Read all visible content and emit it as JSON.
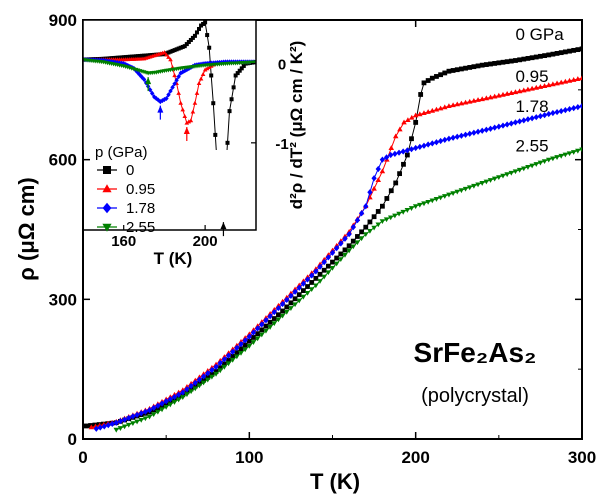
{
  "chart_data": {
    "type": "line",
    "main": {
      "xlabel": "T (K)",
      "ylabel": "ρ (μΩ cm)",
      "xlim": [
        0,
        300
      ],
      "ylim": [
        0,
        900
      ],
      "xticks": [
        "0",
        "100",
        "200",
        "300"
      ],
      "yticks": [
        "0",
        "300",
        "600",
        "900"
      ],
      "sample_title": "SrFe₂As₂",
      "sample_subtitle": "(polycrystal)",
      "series": [
        {
          "label": "0 GPa",
          "color": "#000000",
          "marker": "square",
          "x": [
            2,
            20,
            40,
            60,
            80,
            100,
            120,
            140,
            160,
            170,
            180,
            188,
            195,
            200,
            203,
            205,
            210,
            220,
            240,
            260,
            280,
            300
          ],
          "y": [
            28,
            35,
            58,
            95,
            145,
            210,
            275,
            345,
            415,
            455,
            500,
            550,
            610,
            680,
            740,
            765,
            775,
            790,
            803,
            813,
            825,
            838
          ]
        },
        {
          "label": "0.95",
          "color": "#ff0000",
          "marker": "triangle-up",
          "x": [
            5,
            20,
            40,
            60,
            80,
            100,
            120,
            140,
            160,
            170,
            180,
            188,
            193,
            200,
            220,
            240,
            260,
            280,
            300
          ],
          "y": [
            25,
            37,
            65,
            105,
            160,
            225,
            295,
            365,
            445,
            500,
            575,
            650,
            680,
            695,
            715,
            730,
            745,
            760,
            775
          ]
        },
        {
          "label": "1.78",
          "color": "#0000ff",
          "marker": "diamond",
          "x": [
            8,
            20,
            40,
            60,
            80,
            100,
            120,
            140,
            160,
            170,
            175,
            180,
            185,
            200,
            220,
            240,
            260,
            280,
            300
          ],
          "y": [
            22,
            35,
            62,
            100,
            155,
            220,
            290,
            360,
            440,
            500,
            560,
            600,
            610,
            625,
            645,
            662,
            680,
            698,
            715
          ]
        },
        {
          "label": "2.55",
          "color": "#008000",
          "marker": "triangle-down",
          "x": [
            20,
            40,
            60,
            80,
            100,
            120,
            140,
            160,
            170,
            180,
            200,
            220,
            240,
            260,
            280,
            300
          ],
          "y": [
            20,
            48,
            90,
            140,
            200,
            265,
            330,
            405,
            440,
            468,
            500,
            525,
            550,
            575,
            600,
            622
          ]
        }
      ],
      "series_labels": [
        {
          "text": "0 GPa",
          "x": 260,
          "y": 870
        },
        {
          "text": "0.95",
          "x": 260,
          "y": 780
        },
        {
          "text": "1.78",
          "x": 260,
          "y": 715
        },
        {
          "text": "2.55",
          "x": 260,
          "y": 630
        }
      ]
    },
    "inset": {
      "xlabel": "T (K)",
      "ylabel": "d²ρ / dT² (μΩ cm / K²)",
      "xlim": [
        140,
        225
      ],
      "ylim": [
        -2.1,
        0.55
      ],
      "xticks": [
        160,
        200
      ],
      "yticks": [
        0,
        -1
      ],
      "legend_title": "p (GPa)",
      "legend_position": "lower-left",
      "legend_entries": [
        "0",
        "0.95",
        "1.78",
        "2.55"
      ],
      "series": [
        {
          "label": "0",
          "color": "#000000",
          "marker": "square",
          "x": [
            140,
            150,
            160,
            170,
            180,
            190,
            195,
            198,
            200,
            202,
            204,
            206,
            208,
            209,
            210,
            212,
            215,
            220,
            225
          ],
          "y": [
            0.05,
            0.06,
            0.08,
            0.1,
            0.12,
            0.22,
            0.35,
            0.48,
            0.52,
            0.2,
            -0.5,
            -1.3,
            -1.95,
            -1.9,
            -1.4,
            -0.6,
            -0.15,
            0.0,
            0.02
          ]
        },
        {
          "label": "0.95",
          "color": "#ff0000",
          "marker": "triangle-up",
          "x": [
            140,
            150,
            160,
            170,
            175,
            180,
            183,
            186,
            188,
            191,
            193,
            195,
            197,
            200,
            205,
            210,
            225
          ],
          "y": [
            0.05,
            0.05,
            0.05,
            0.06,
            0.1,
            0.14,
            0.05,
            -0.25,
            -0.5,
            -0.75,
            -0.72,
            -0.5,
            -0.25,
            -0.08,
            0.0,
            0.02,
            0.02
          ]
        },
        {
          "label": "1.78",
          "color": "#0000ff",
          "marker": "diamond",
          "x": [
            140,
            150,
            160,
            165,
            170,
            175,
            178,
            181,
            184,
            188,
            195,
            200,
            210,
            225
          ],
          "y": [
            0.05,
            0.04,
            0.0,
            -0.06,
            -0.2,
            -0.42,
            -0.48,
            -0.44,
            -0.3,
            -0.12,
            -0.02,
            0.0,
            0.02,
            0.02
          ]
        },
        {
          "label": "2.55",
          "color": "#008000",
          "marker": "triangle-down",
          "x": [
            140,
            150,
            160,
            168,
            172,
            176,
            180,
            190,
            200,
            210,
            225
          ],
          "y": [
            0.05,
            0.02,
            -0.03,
            -0.09,
            -0.12,
            -0.11,
            -0.09,
            -0.05,
            -0.02,
            0.0,
            0.02
          ]
        }
      ],
      "transition_arrows": [
        {
          "series": "0",
          "x": 209,
          "y0": -1.95,
          "y1": -2.05
        },
        {
          "series": "0.95",
          "x": 191,
          "y0": -0.75,
          "y1": -1.0
        },
        {
          "series": "1.78",
          "x": 178,
          "y0": -0.48,
          "y1": -0.7
        },
        {
          "series": "2.55",
          "x": 172,
          "y0": -0.12,
          "y1": -0.3
        }
      ]
    }
  }
}
